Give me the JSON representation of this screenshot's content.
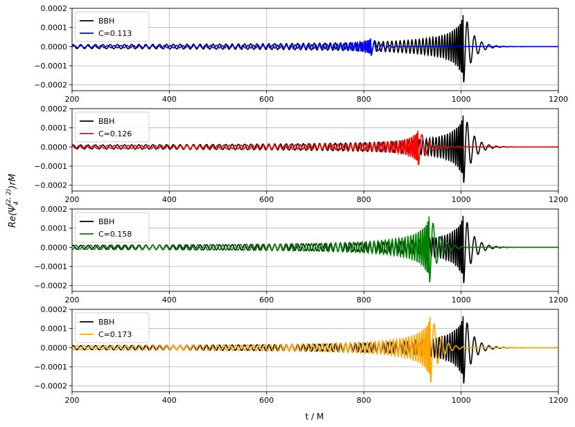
{
  "chart_data": {
    "type": "line",
    "xlabel": "t / M",
    "ylabel": "Re(Ψ₄^(2,2))rM",
    "ylabel_parts": {
      "base": "Re(Ψ",
      "sub": "4",
      "sup": "(2, 2)",
      "tail": ")rM"
    },
    "xlim": [
      200,
      1200
    ],
    "ylim": [
      -0.00023,
      0.0002
    ],
    "xticks": [
      200,
      400,
      600,
      800,
      1000,
      1200
    ],
    "xtick_labels": [
      "200",
      "400",
      "600",
      "800",
      "1000",
      "1200"
    ],
    "yticks": [
      0.0002,
      0.0001,
      0.0,
      -0.0001,
      -0.0002
    ],
    "ytick_labels": [
      "0.0002",
      "0.0001",
      "0.0000",
      "−0.0001",
      "−0.0002"
    ],
    "grid": true,
    "legend_position": "upper-left",
    "reference": {
      "name": "BBH",
      "color": "#000000",
      "merger_t": 1005,
      "peak_amplitude": 0.000195
    },
    "panels": [
      {
        "name": "C=0.113",
        "color": "#0000ff",
        "merger_t": 815,
        "peak_amplitude": 4.7e-05
      },
      {
        "name": "C=0.126",
        "color": "#ff0000",
        "merger_t": 912,
        "peak_amplitude": 9.8e-05
      },
      {
        "name": "C=0.158",
        "color": "#008000",
        "merger_t": 935,
        "peak_amplitude": 0.00019
      },
      {
        "name": "C=0.173",
        "color": "#ffa500",
        "merger_t": 937,
        "peak_amplitude": 0.00019
      }
    ]
  }
}
